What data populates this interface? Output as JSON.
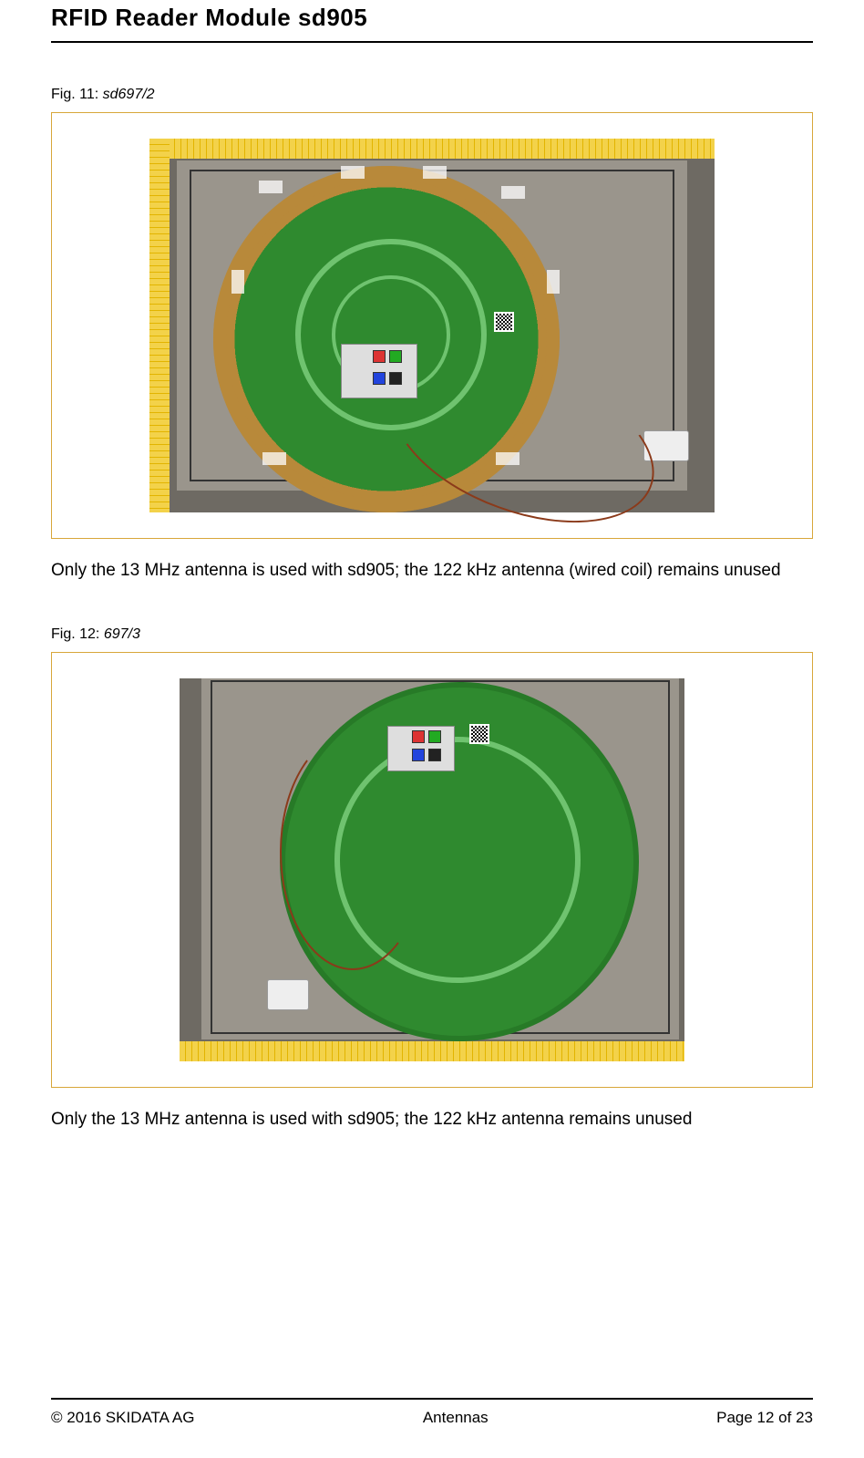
{
  "header": {
    "title": "RFID Reader Module sd905"
  },
  "fig11": {
    "caption_label": "Fig. 11: ",
    "caption_value": "sd697/2"
  },
  "para1": "Only the 13 MHz antenna is used with sd905; the 122 kHz antenna (wired coil) remains unused",
  "fig12": {
    "caption_label": "Fig. 12: ",
    "caption_value": "697/3"
  },
  "para2": "Only the 13 MHz antenna is used with sd905; the 122 kHz antenna remains unused",
  "footer": {
    "left": "© 2016 SKIDATA AG",
    "center": "Antennas",
    "right": "Page 12 of 23"
  },
  "colors": {
    "figure_border": "#d8a73a",
    "pcb_green": "#2f8a2f",
    "coil_copper": "#b8893a",
    "ruler_yellow": "#f3d24a"
  }
}
